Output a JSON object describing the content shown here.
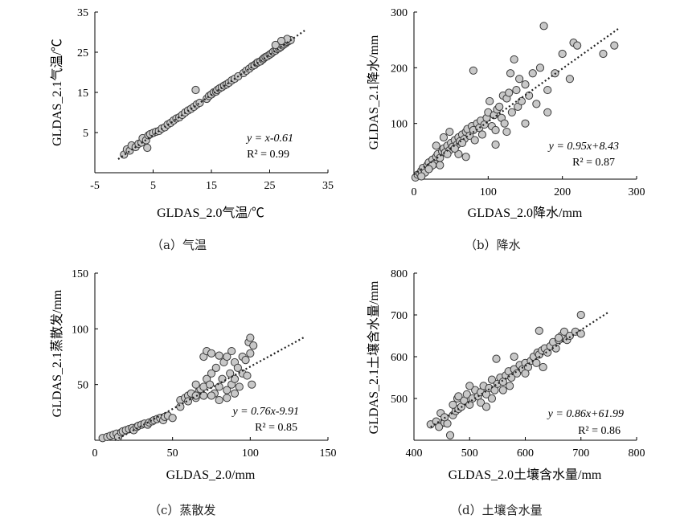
{
  "chart_data": [
    {
      "type": "scatter",
      "caption": "（a）气温",
      "xlabel": "GLDAS_2.0气温/℃",
      "ylabel": "GLDAS_2.1气温/℃",
      "xlim": [
        -5,
        35
      ],
      "ylim": [
        -5,
        35
      ],
      "xticks": [
        -5,
        5,
        15,
        25,
        35
      ],
      "yticks": [
        5,
        15,
        25,
        35
      ],
      "equation": "y = x-0.61",
      "r2": "R² = 0.99",
      "trend": {
        "slope": 1,
        "intercept": -0.61,
        "x_range": [
          -1,
          31
        ]
      },
      "points": [
        [
          0,
          -0.5
        ],
        [
          0.5,
          0.8
        ],
        [
          1,
          0.5
        ],
        [
          1.3,
          1.8
        ],
        [
          2,
          1.4
        ],
        [
          2.5,
          2.2
        ],
        [
          3,
          2.5
        ],
        [
          3.2,
          3.6
        ],
        [
          3.8,
          3.1
        ],
        [
          4,
          1.2
        ],
        [
          4.2,
          4.3
        ],
        [
          4.5,
          4.6
        ],
        [
          5,
          4.9
        ],
        [
          5.5,
          5.2
        ],
        [
          6,
          5.4
        ],
        [
          6.5,
          6
        ],
        [
          7,
          6.3
        ],
        [
          7.5,
          7
        ],
        [
          8,
          7.4
        ],
        [
          8.5,
          8
        ],
        [
          9,
          8.5
        ],
        [
          9.5,
          8.8
        ],
        [
          10,
          9.4
        ],
        [
          10.5,
          10
        ],
        [
          11,
          10.5
        ],
        [
          11.5,
          10.9
        ],
        [
          12,
          11.4
        ],
        [
          12.5,
          12
        ],
        [
          12.3,
          15.6
        ],
        [
          13,
          12.4
        ],
        [
          14.2,
          13.4
        ],
        [
          14.6,
          14.1
        ],
        [
          15,
          14.5
        ],
        [
          15.4,
          15
        ],
        [
          15.8,
          15.2
        ],
        [
          16,
          15.6
        ],
        [
          16.4,
          16
        ],
        [
          16.8,
          16.3
        ],
        [
          17.2,
          16.7
        ],
        [
          17.6,
          17
        ],
        [
          18,
          17.4
        ],
        [
          18.5,
          18
        ],
        [
          19,
          18.4
        ],
        [
          19.6,
          19
        ],
        [
          20.5,
          19.8
        ],
        [
          21,
          20.4
        ],
        [
          21.5,
          20.9
        ],
        [
          22,
          21.5
        ],
        [
          22.4,
          21.8
        ],
        [
          22.8,
          22.3
        ],
        [
          23,
          22.5
        ],
        [
          23.4,
          22.7
        ],
        [
          23.8,
          23.2
        ],
        [
          24,
          23.5
        ],
        [
          24.3,
          23.8
        ],
        [
          24.6,
          24
        ],
        [
          25,
          24.4
        ],
        [
          25.3,
          24.7
        ],
        [
          25.6,
          25.1
        ],
        [
          26,
          25.4
        ],
        [
          26.3,
          25.8
        ],
        [
          26.6,
          26
        ],
        [
          26.9,
          26.3
        ],
        [
          27.2,
          26.7
        ],
        [
          27.5,
          27
        ],
        [
          27.8,
          27.3
        ],
        [
          28,
          27.6
        ],
        [
          28.3,
          27.8
        ],
        [
          28.6,
          28
        ],
        [
          28,
          28.3
        ],
        [
          27,
          27.8
        ],
        [
          26,
          26.8
        ]
      ]
    },
    {
      "type": "scatter",
      "caption": "（b）降水",
      "xlabel": "GLDAS_2.0降水/mm",
      "ylabel": "GLDAS_2.1降水/mm",
      "xlim": [
        0,
        300
      ],
      "ylim": [
        0,
        300
      ],
      "xticks": [
        0,
        100,
        200,
        300
      ],
      "yticks": [
        100,
        200,
        300
      ],
      "equation": "y = 0.95x+8.43",
      "r2": "R² = 0.87",
      "trend": {
        "slope": 0.95,
        "intercept": 8.43,
        "x_range": [
          0,
          275
        ]
      },
      "points": [
        [
          2,
          3
        ],
        [
          5,
          8
        ],
        [
          8,
          10
        ],
        [
          10,
          15
        ],
        [
          12,
          20
        ],
        [
          15,
          12
        ],
        [
          18,
          25
        ],
        [
          20,
          30
        ],
        [
          22,
          22
        ],
        [
          25,
          35
        ],
        [
          28,
          28
        ],
        [
          30,
          40
        ],
        [
          32,
          45
        ],
        [
          35,
          38
        ],
        [
          38,
          50
        ],
        [
          40,
          55
        ],
        [
          42,
          48
        ],
        [
          45,
          60
        ],
        [
          48,
          52
        ],
        [
          50,
          65
        ],
        [
          52,
          58
        ],
        [
          55,
          70
        ],
        [
          58,
          62
        ],
        [
          60,
          75
        ],
        [
          62,
          68
        ],
        [
          65,
          80
        ],
        [
          68,
          72
        ],
        [
          70,
          85
        ],
        [
          72,
          90
        ],
        [
          75,
          78
        ],
        [
          78,
          95
        ],
        [
          80,
          88
        ],
        [
          82,
          70
        ],
        [
          85,
          100
        ],
        [
          88,
          92
        ],
        [
          90,
          105
        ],
        [
          92,
          80
        ],
        [
          95,
          98
        ],
        [
          98,
          110
        ],
        [
          100,
          120
        ],
        [
          102,
          140
        ],
        [
          105,
          95
        ],
        [
          108,
          115
        ],
        [
          110,
          88
        ],
        [
          112,
          125
        ],
        [
          115,
          130
        ],
        [
          118,
          110
        ],
        [
          120,
          150
        ],
        [
          122,
          100
        ],
        [
          125,
          145
        ],
        [
          128,
          155
        ],
        [
          130,
          190
        ],
        [
          132,
          120
        ],
        [
          135,
          215
        ],
        [
          138,
          160
        ],
        [
          140,
          130
        ],
        [
          142,
          180
        ],
        [
          145,
          140
        ],
        [
          150,
          170
        ],
        [
          155,
          150
        ],
        [
          160,
          190
        ],
        [
          165,
          135
        ],
        [
          170,
          200
        ],
        [
          175,
          275
        ],
        [
          180,
          160
        ],
        [
          190,
          190
        ],
        [
          200,
          225
        ],
        [
          210,
          180
        ],
        [
          215,
          245
        ],
        [
          220,
          240
        ],
        [
          255,
          225
        ],
        [
          270,
          240
        ],
        [
          80,
          195
        ],
        [
          110,
          62
        ],
        [
          48,
          85
        ],
        [
          40,
          75
        ],
        [
          30,
          60
        ],
        [
          35,
          25
        ],
        [
          60,
          45
        ],
        [
          70,
          40
        ],
        [
          180,
          120
        ],
        [
          150,
          100
        ],
        [
          125,
          85
        ],
        [
          65,
          65
        ],
        [
          55,
          55
        ],
        [
          45,
          45
        ],
        [
          25,
          25
        ],
        [
          20,
          18
        ],
        [
          10,
          5
        ]
      ]
    },
    {
      "type": "scatter",
      "caption": "（c）蒸散发",
      "xlabel": "GLDAS_2.0/mm",
      "ylabel": "GLDAS_2.1蒸散发/mm",
      "xlim": [
        0,
        150
      ],
      "ylim": [
        0,
        150
      ],
      "xticks": [
        0,
        50,
        100,
        150
      ],
      "yticks": [
        50,
        100,
        150
      ],
      "equation": "y = 0.76x-9.91",
      "r2": "R² = 0.85",
      "trend": {
        "slope": 0.76,
        "intercept": -9.91,
        "x_range": [
          13,
          135
        ]
      },
      "points": [
        [
          5,
          2
        ],
        [
          8,
          3
        ],
        [
          10,
          4
        ],
        [
          12,
          5
        ],
        [
          14,
          6
        ],
        [
          15,
          3
        ],
        [
          17,
          7
        ],
        [
          18,
          8
        ],
        [
          20,
          9
        ],
        [
          22,
          10
        ],
        [
          24,
          11
        ],
        [
          25,
          9
        ],
        [
          27,
          12
        ],
        [
          28,
          13
        ],
        [
          30,
          14
        ],
        [
          32,
          15
        ],
        [
          34,
          14
        ],
        [
          35,
          16
        ],
        [
          37,
          17
        ],
        [
          38,
          18
        ],
        [
          40,
          19
        ],
        [
          42,
          20
        ],
        [
          44,
          18
        ],
        [
          45,
          21
        ],
        [
          47,
          22
        ],
        [
          50,
          20
        ],
        [
          55,
          36
        ],
        [
          58,
          38
        ],
        [
          60,
          40
        ],
        [
          62,
          42
        ],
        [
          65,
          38
        ],
        [
          67,
          44
        ],
        [
          68,
          46
        ],
        [
          70,
          48
        ],
        [
          70,
          75
        ],
        [
          72,
          55
        ],
        [
          72,
          80
        ],
        [
          74,
          50
        ],
        [
          75,
          60
        ],
        [
          75,
          78
        ],
        [
          77,
          42
        ],
        [
          78,
          65
        ],
        [
          80,
          48
        ],
        [
          80,
          76
        ],
        [
          82,
          55
        ],
        [
          83,
          70
        ],
        [
          85,
          45
        ],
        [
          85,
          75
        ],
        [
          87,
          60
        ],
        [
          88,
          50
        ],
        [
          88,
          80
        ],
        [
          90,
          55
        ],
        [
          90,
          70
        ],
        [
          92,
          65
        ],
        [
          93,
          48
        ],
        [
          95,
          75
        ],
        [
          95,
          60
        ],
        [
          97,
          72
        ],
        [
          98,
          58
        ],
        [
          99,
          88
        ],
        [
          100,
          78
        ],
        [
          100,
          92
        ],
        [
          101,
          50
        ],
        [
          102,
          85
        ],
        [
          65,
          50
        ],
        [
          60,
          35
        ],
        [
          55,
          30
        ],
        [
          75,
          40
        ],
        [
          80,
          36
        ],
        [
          85,
          38
        ],
        [
          90,
          42
        ],
        [
          70,
          40
        ],
        [
          65,
          40
        ]
      ]
    },
    {
      "type": "scatter",
      "caption": "（d）土壤含水量",
      "xlabel": "GLDAS_2.0土壤含水量/mm",
      "ylabel": "GLDAS_2.1土壤含水量/mm",
      "xlim": [
        400,
        800
      ],
      "ylim": [
        400,
        800
      ],
      "xticks": [
        400,
        500,
        600,
        700,
        800
      ],
      "yticks": [
        500,
        600,
        700,
        800
      ],
      "equation": "y = 0.86x+61.99",
      "r2": "R² = 0.86",
      "trend": {
        "slope": 0.86,
        "intercept": 61.99,
        "x_range": [
          430,
          750
        ]
      },
      "points": [
        [
          430,
          438
        ],
        [
          440,
          445
        ],
        [
          445,
          432
        ],
        [
          448,
          465
        ],
        [
          455,
          442
        ],
        [
          460,
          440
        ],
        [
          465,
          412
        ],
        [
          470,
          460
        ],
        [
          475,
          470
        ],
        [
          478,
          500
        ],
        [
          480,
          475
        ],
        [
          485,
          480
        ],
        [
          490,
          495
        ],
        [
          495,
          510
        ],
        [
          500,
          485
        ],
        [
          505,
          500
        ],
        [
          510,
          520
        ],
        [
          515,
          505
        ],
        [
          520,
          515
        ],
        [
          525,
          530
        ],
        [
          530,
          510
        ],
        [
          535,
          525
        ],
        [
          540,
          545
        ],
        [
          545,
          520
        ],
        [
          548,
          595
        ],
        [
          550,
          535
        ],
        [
          555,
          550
        ],
        [
          560,
          540
        ],
        [
          565,
          555
        ],
        [
          570,
          565
        ],
        [
          572,
          530
        ],
        [
          575,
          550
        ],
        [
          580,
          570
        ],
        [
          585,
          560
        ],
        [
          590,
          580
        ],
        [
          595,
          570
        ],
        [
          600,
          585
        ],
        [
          605,
          575
        ],
        [
          610,
          590
        ],
        [
          615,
          600
        ],
        [
          620,
          585
        ],
        [
          622,
          610
        ],
        [
          625,
          605
        ],
        [
          630,
          615
        ],
        [
          632,
          575
        ],
        [
          635,
          620
        ],
        [
          640,
          610
        ],
        [
          645,
          625
        ],
        [
          650,
          635
        ],
        [
          655,
          620
        ],
        [
          660,
          640
        ],
        [
          665,
          650
        ],
        [
          670,
          660
        ],
        [
          675,
          640
        ],
        [
          680,
          650
        ],
        [
          690,
          660
        ],
        [
          700,
          655
        ],
        [
          700,
          700
        ],
        [
          625,
          662
        ],
        [
          660,
          645
        ],
        [
          520,
          490
        ],
        [
          530,
          480
        ],
        [
          560,
          520
        ],
        [
          580,
          600
        ],
        [
          600,
          560
        ],
        [
          540,
          500
        ],
        [
          500,
          530
        ],
        [
          480,
          505
        ],
        [
          470,
          485
        ],
        [
          455,
          455
        ]
      ]
    }
  ]
}
